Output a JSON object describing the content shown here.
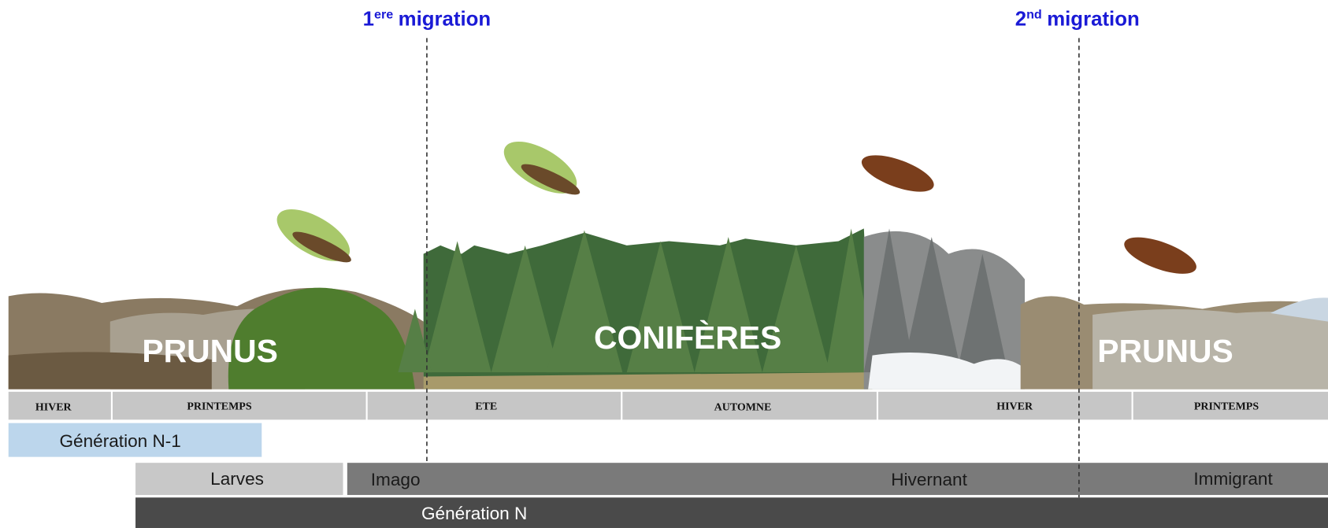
{
  "migrations": [
    {
      "number": "1",
      "suffix": "ere",
      "label": "migration"
    },
    {
      "number": "2",
      "suffix": "nd",
      "label": "migration"
    }
  ],
  "hosts": [
    "PRUNUS",
    "CONIFÈRES",
    "PRUNUS"
  ],
  "seasons": [
    "HIVER",
    "PRINTEMPS",
    "ETE",
    "AUTOMNE",
    "HIVER",
    "PRINTEMPS"
  ],
  "bars": {
    "previous_generation": "Génération N-1",
    "larvae": "Larves",
    "imago": "Imago",
    "overwintering": "Hivernant",
    "immigrant": "Immigrant",
    "generation": "Génération N"
  }
}
